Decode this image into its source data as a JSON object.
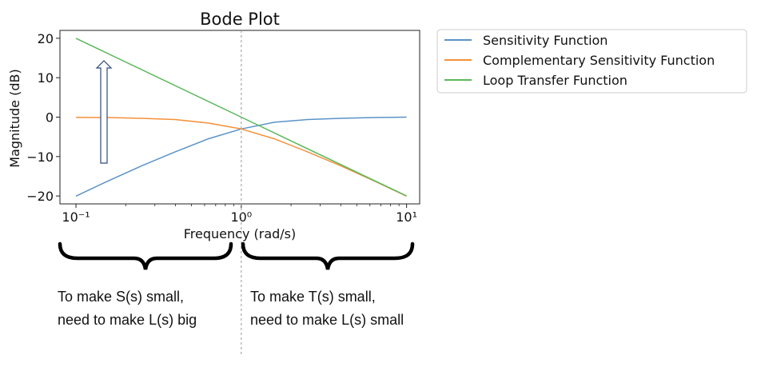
{
  "chart_data": {
    "type": "line",
    "title": "Bode Plot",
    "xlabel": "Frequency (rad/s)",
    "ylabel": "Magnitude (dB)",
    "xscale": "log",
    "xlim": [
      0.08,
      12
    ],
    "ylim": [
      -22,
      22
    ],
    "x_ticks": [
      {
        "value": 0.1,
        "label": "10⁻¹"
      },
      {
        "value": 1,
        "label": "10⁰"
      },
      {
        "value": 10,
        "label": "10¹"
      }
    ],
    "y_ticks": [
      {
        "value": 20,
        "label": "20"
      },
      {
        "value": 10,
        "label": "10"
      },
      {
        "value": 0,
        "label": "0"
      },
      {
        "value": -10,
        "label": "−10"
      },
      {
        "value": -20,
        "label": "−20"
      }
    ],
    "grid": false,
    "legend_position": "outside top-right",
    "reference_line": {
      "x": 1,
      "style": "dashed vertical"
    },
    "series": [
      {
        "name": "Sensitivity Function",
        "color": "#5b93c7",
        "x": [
          0.1,
          0.158,
          0.251,
          0.398,
          0.631,
          1,
          1.585,
          2.512,
          3.981,
          6.31,
          10
        ],
        "y": [
          -20.04,
          -16.1,
          -12.3,
          -8.8,
          -5.5,
          -3.0,
          -1.3,
          -0.6,
          -0.3,
          -0.1,
          0.0
        ]
      },
      {
        "name": "Complementary Sensitivity Function",
        "color": "#f5913a",
        "x": [
          0.1,
          0.158,
          0.251,
          0.398,
          0.631,
          1,
          1.585,
          2.512,
          3.981,
          6.31,
          10
        ],
        "y": [
          -0.04,
          -0.1,
          -0.3,
          -0.6,
          -1.5,
          -3.0,
          -5.5,
          -8.8,
          -12.3,
          -16.1,
          -20.04
        ]
      },
      {
        "name": "Loop Transfer Function",
        "color": "#5cb85c",
        "x": [
          0.1,
          1,
          10
        ],
        "y": [
          20,
          0,
          -20
        ]
      }
    ]
  },
  "annotations": {
    "left_text_line1": "To make S(s) small,",
    "left_text_line2": "need to make L(s) big",
    "right_text_line1": "To make T(s) small,",
    "right_text_line2": "need to make L(s) small"
  }
}
